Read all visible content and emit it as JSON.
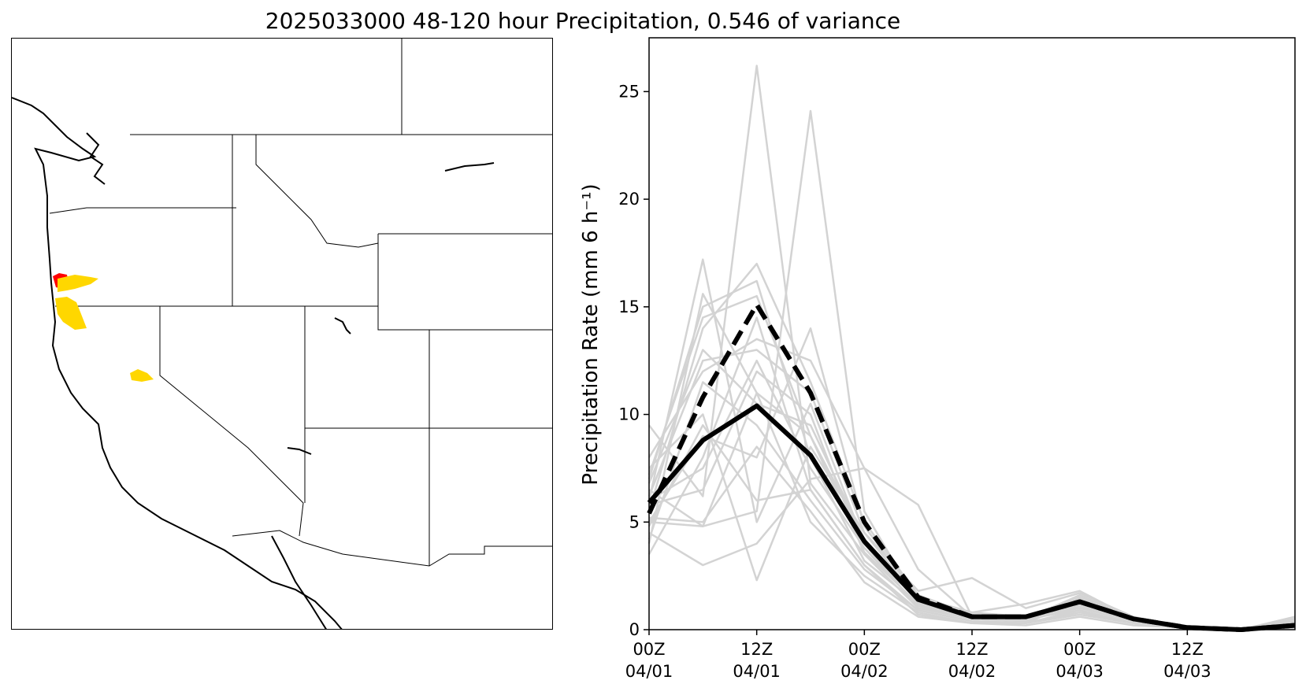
{
  "figure": {
    "title": "2025033000 48-120 hour Precipitation, 0.546 of variance"
  },
  "map": {
    "highlight_colors": {
      "high": "#ff0000",
      "medium": "#ffd700"
    },
    "basin_line_color": "#b3b3b3",
    "border_color": "#000000"
  },
  "chart_data": {
    "type": "line",
    "title": "",
    "xlabel": "",
    "ylabel": "Precipitation Rate (mm 6 h⁻¹)",
    "ylim": [
      0,
      27.5
    ],
    "yticks": [
      0,
      5,
      10,
      15,
      20,
      25
    ],
    "x_hours": [
      0,
      6,
      12,
      18,
      24,
      30,
      36,
      42,
      48,
      54,
      60,
      66,
      72
    ],
    "xlim": [
      0,
      72
    ],
    "xticks": [
      {
        "hour": 0,
        "time": "00Z",
        "date": "04/01"
      },
      {
        "hour": 12,
        "time": "12Z",
        "date": "04/01"
      },
      {
        "hour": 24,
        "time": "00Z",
        "date": "04/02"
      },
      {
        "hour": 36,
        "time": "12Z",
        "date": "04/02"
      },
      {
        "hour": 48,
        "time": "00Z",
        "date": "04/03"
      },
      {
        "hour": 60,
        "time": "12Z",
        "date": "04/03"
      }
    ],
    "grid": false,
    "series": [
      {
        "style": "ensemble-member",
        "color": "#d3d3d3",
        "values": [
          9.5,
          6.2,
          26.2,
          6.8,
          3.5,
          1.5,
          0.8,
          0.6,
          1.0,
          0.5,
          0.1,
          0.0,
          0.2
        ]
      },
      {
        "style": "ensemble-member",
        "color": "#d3d3d3",
        "values": [
          5.0,
          4.8,
          5.5,
          24.1,
          5.5,
          1.2,
          0.6,
          0.5,
          0.9,
          0.3,
          0.1,
          0.0,
          0.1
        ]
      },
      {
        "style": "ensemble-member",
        "color": "#d3d3d3",
        "values": [
          6.0,
          17.2,
          5.0,
          10.5,
          4.0,
          1.0,
          0.5,
          0.4,
          1.2,
          0.4,
          0.1,
          0.0,
          0.3
        ]
      },
      {
        "style": "ensemble-member",
        "color": "#d3d3d3",
        "values": [
          4.0,
          15.6,
          11.0,
          9.0,
          4.2,
          1.4,
          0.6,
          0.5,
          1.1,
          0.4,
          0.1,
          0.0,
          0.2
        ]
      },
      {
        "style": "ensemble-member",
        "color": "#d3d3d3",
        "values": [
          7.0,
          15.0,
          16.2,
          8.0,
          3.2,
          1.2,
          0.5,
          0.5,
          1.3,
          0.5,
          0.1,
          0.0,
          0.4
        ]
      },
      {
        "style": "ensemble-member",
        "color": "#d3d3d3",
        "values": [
          5.5,
          14.0,
          17.0,
          11.5,
          5.0,
          1.6,
          0.7,
          0.6,
          1.5,
          0.5,
          0.1,
          0.0,
          0.6
        ]
      },
      {
        "style": "ensemble-member",
        "color": "#d3d3d3",
        "values": [
          3.5,
          8.0,
          14.5,
          6.5,
          3.0,
          0.9,
          0.4,
          0.3,
          1.4,
          0.4,
          0.1,
          0.0,
          0.2
        ]
      },
      {
        "style": "ensemble-member",
        "color": "#d3d3d3",
        "values": [
          8.0,
          12.0,
          13.5,
          12.5,
          7.5,
          5.8,
          0.6,
          0.5,
          1.0,
          0.4,
          0.1,
          0.0,
          0.1
        ]
      },
      {
        "style": "ensemble-member",
        "color": "#d3d3d3",
        "values": [
          6.5,
          4.8,
          11.0,
          5.0,
          2.5,
          0.8,
          0.3,
          0.3,
          0.8,
          0.3,
          0.1,
          0.0,
          0.1
        ]
      },
      {
        "style": "ensemble-member",
        "color": "#d3d3d3",
        "values": [
          4.5,
          3.0,
          4.0,
          7.0,
          7.5,
          2.8,
          0.6,
          0.5,
          1.6,
          0.5,
          0.1,
          0.0,
          0.3
        ]
      },
      {
        "style": "ensemble-member",
        "color": "#d3d3d3",
        "values": [
          7.5,
          10.0,
          2.3,
          8.5,
          4.5,
          1.8,
          2.4,
          1.0,
          1.7,
          0.6,
          0.1,
          0.0,
          0.5
        ]
      },
      {
        "style": "ensemble-member",
        "color": "#d3d3d3",
        "values": [
          5.0,
          9.0,
          8.0,
          14.0,
          4.8,
          1.5,
          0.8,
          1.2,
          1.8,
          0.5,
          0.1,
          0.0,
          0.2
        ]
      },
      {
        "style": "ensemble-member",
        "color": "#d3d3d3",
        "values": [
          6.0,
          7.5,
          12.5,
          7.5,
          3.8,
          1.1,
          0.5,
          0.4,
          1.2,
          0.4,
          0.1,
          0.0,
          0.2
        ]
      },
      {
        "style": "ensemble-member",
        "color": "#d3d3d3",
        "values": [
          4.2,
          11.5,
          9.5,
          6.0,
          2.8,
          0.9,
          0.4,
          0.3,
          0.9,
          0.3,
          0.1,
          0.0,
          0.1
        ]
      },
      {
        "style": "ensemble-member",
        "color": "#d3d3d3",
        "values": [
          6.8,
          13.0,
          10.5,
          9.5,
          4.2,
          1.3,
          0.5,
          0.4,
          1.3,
          0.4,
          0.1,
          0.0,
          0.3
        ]
      },
      {
        "style": "ensemble-member",
        "color": "#d3d3d3",
        "values": [
          5.8,
          6.5,
          12.0,
          10.0,
          3.5,
          1.0,
          0.5,
          0.4,
          1.1,
          0.4,
          0.1,
          0.0,
          0.2
        ]
      },
      {
        "style": "ensemble-member",
        "color": "#d3d3d3",
        "values": [
          4.8,
          9.5,
          6.0,
          6.5,
          3.0,
          0.7,
          0.3,
          0.3,
          0.7,
          0.3,
          0.1,
          0.0,
          0.1
        ]
      },
      {
        "style": "ensemble-member",
        "color": "#d3d3d3",
        "values": [
          7.2,
          14.5,
          15.5,
          9.0,
          3.6,
          1.2,
          0.5,
          0.5,
          1.4,
          0.5,
          0.1,
          0.0,
          0.4
        ]
      },
      {
        "style": "ensemble-member",
        "color": "#d3d3d3",
        "values": [
          5.2,
          5.0,
          8.5,
          5.5,
          2.2,
          0.6,
          0.3,
          0.2,
          0.6,
          0.2,
          0.1,
          0.0,
          0.1
        ]
      },
      {
        "style": "ensemble-member",
        "color": "#d3d3d3",
        "values": [
          6.2,
          12.5,
          13.0,
          11.0,
          4.5,
          1.4,
          0.6,
          0.5,
          1.5,
          0.5,
          0.1,
          0.0,
          0.2
        ]
      },
      {
        "style": "dashed-mean",
        "color": "#000000",
        "values": [
          5.4,
          10.8,
          15.1,
          11.0,
          5.0,
          1.5,
          0.6,
          0.6,
          1.3,
          0.5,
          0.1,
          0.0,
          0.2
        ]
      },
      {
        "style": "solid-bold",
        "color": "#000000",
        "values": [
          5.9,
          8.8,
          10.4,
          8.1,
          4.1,
          1.4,
          0.6,
          0.6,
          1.3,
          0.5,
          0.1,
          0.0,
          0.2
        ]
      }
    ]
  }
}
